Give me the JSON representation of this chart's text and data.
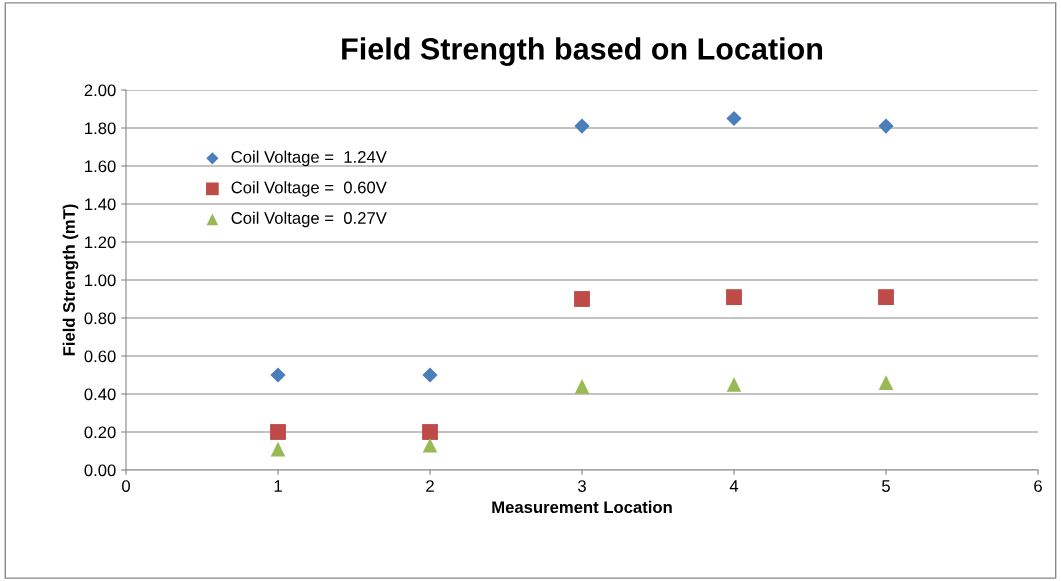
{
  "chart_data": {
    "type": "scatter",
    "title": "Field Strength based on Location",
    "xlabel": "Measurement Location",
    "ylabel": "Field Strength (mT)",
    "x": [
      1,
      2,
      3,
      4,
      5
    ],
    "series": [
      {
        "name": "Coil Voltage =  1.24V",
        "color": "#4a7ebb",
        "marker": "diamond",
        "values": [
          0.5,
          0.5,
          1.81,
          1.85,
          1.81
        ]
      },
      {
        "name": "Coil Voltage =  0.60V",
        "color": "#be4b48",
        "marker": "square",
        "values": [
          0.2,
          0.2,
          0.9,
          0.91,
          0.91
        ]
      },
      {
        "name": "Coil Voltage =  0.27V",
        "color": "#98b954",
        "marker": "triangle",
        "values": [
          0.11,
          0.13,
          0.44,
          0.45,
          0.46
        ]
      }
    ],
    "xlim": [
      0,
      6
    ],
    "xticks": [
      0,
      1,
      2,
      3,
      4,
      5,
      6
    ],
    "ylim": [
      0,
      2
    ],
    "yticks": [
      {
        "value": 0,
        "label": "0.00"
      },
      {
        "value": 0.2,
        "label": "0.20"
      },
      {
        "value": 0.4,
        "label": "0.40"
      },
      {
        "value": 0.6,
        "label": "0.60"
      },
      {
        "value": 0.8,
        "label": "0.80"
      },
      {
        "value": 1.0,
        "label": "1.00"
      },
      {
        "value": 1.2,
        "label": "1.20"
      },
      {
        "value": 1.4,
        "label": "1.40"
      },
      {
        "value": 1.6,
        "label": "1.60"
      },
      {
        "value": 1.8,
        "label": "1.80"
      },
      {
        "value": 2.0,
        "label": "2.00"
      }
    ],
    "grid": "y",
    "legend": "top left"
  }
}
